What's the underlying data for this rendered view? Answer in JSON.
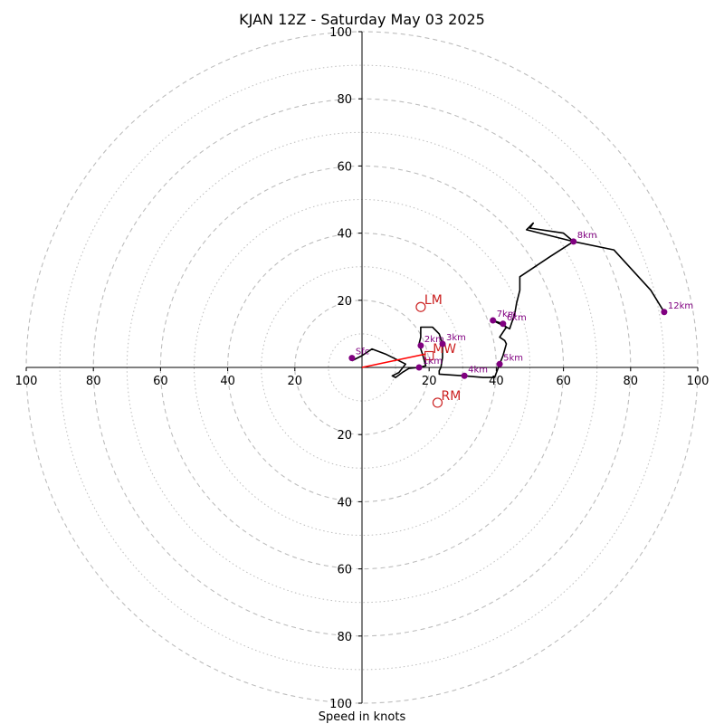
{
  "chart_data": {
    "type": "hodograph",
    "title": "KJAN 12Z - Saturday May 03 2025",
    "xlabel": "Speed in knots",
    "units": "knots",
    "range": [
      -100,
      100
    ],
    "ring_step": 10,
    "major_ring_step": 20,
    "tick_labels": [
      "100",
      "80",
      "60",
      "40",
      "20"
    ],
    "colors": {
      "trace": "#000000",
      "height_marker": "#800080",
      "motion": "#cc2222",
      "shear_vector": "#ff0000",
      "ring": "#bdbdbd",
      "axis": "#000000"
    },
    "trace": [
      [
        -3,
        2
      ],
      [
        0,
        3.5
      ],
      [
        3,
        5.5
      ],
      [
        7,
        4
      ],
      [
        10,
        2.5
      ],
      [
        13,
        1
      ],
      [
        11,
        -1.5
      ],
      [
        9,
        -2.5
      ],
      [
        10,
        -3
      ],
      [
        12,
        -1.5
      ],
      [
        14,
        -0.3
      ],
      [
        17,
        0
      ],
      [
        19,
        0.5
      ],
      [
        18,
        4
      ],
      [
        17,
        7
      ],
      [
        17.5,
        9
      ],
      [
        17.5,
        12
      ],
      [
        21,
        12
      ],
      [
        23,
        10
      ],
      [
        24,
        7
      ],
      [
        24,
        3
      ],
      [
        23.5,
        0
      ],
      [
        23,
        -1
      ],
      [
        23,
        -2
      ],
      [
        30.5,
        -2.5
      ],
      [
        36,
        -3
      ],
      [
        39.5,
        -3
      ],
      [
        41,
        1
      ],
      [
        42,
        3.5
      ],
      [
        43,
        7
      ],
      [
        42.5,
        8
      ],
      [
        41,
        9
      ],
      [
        43,
        12
      ],
      [
        42,
        13
      ],
      [
        39,
        14
      ],
      [
        44,
        11.5
      ],
      [
        45.5,
        16
      ],
      [
        46,
        19
      ],
      [
        47,
        23
      ],
      [
        47,
        27
      ],
      [
        50,
        29
      ],
      [
        56,
        33
      ],
      [
        63,
        37.5
      ],
      [
        60,
        40
      ],
      [
        50,
        41.5
      ],
      [
        51,
        43
      ],
      [
        49,
        41
      ],
      [
        63,
        37.5
      ],
      [
        75,
        35
      ],
      [
        86,
        23
      ],
      [
        90,
        16.5
      ]
    ],
    "height_markers": [
      {
        "label": "Sfc",
        "u": -3,
        "v": 2.8
      },
      {
        "label": "1km",
        "u": 17,
        "v": 0
      },
      {
        "label": "2km",
        "u": 17.5,
        "v": 6.5
      },
      {
        "label": "3km",
        "u": 24,
        "v": 7
      },
      {
        "label": "4km",
        "u": 30.5,
        "v": -2.5
      },
      {
        "label": "5km",
        "u": 41,
        "v": 1
      },
      {
        "label": "6km",
        "u": 42,
        "v": 13
      },
      {
        "label": "7km",
        "u": 39,
        "v": 14
      },
      {
        "label": "8km",
        "u": 63,
        "v": 37.5
      },
      {
        "label": "12km",
        "u": 90,
        "v": 16.5
      }
    ],
    "storm_motions": [
      {
        "label": "LM",
        "u": 17.5,
        "v": 18,
        "marker": "circle"
      },
      {
        "label": "MW",
        "u": 20,
        "v": 3.5,
        "marker": "square"
      },
      {
        "label": "RM",
        "u": 22.5,
        "v": -10.5,
        "marker": "circle"
      }
    ],
    "shear_vector": {
      "from": [
        0,
        0
      ],
      "to": [
        19,
        4
      ]
    },
    "grid": true
  }
}
